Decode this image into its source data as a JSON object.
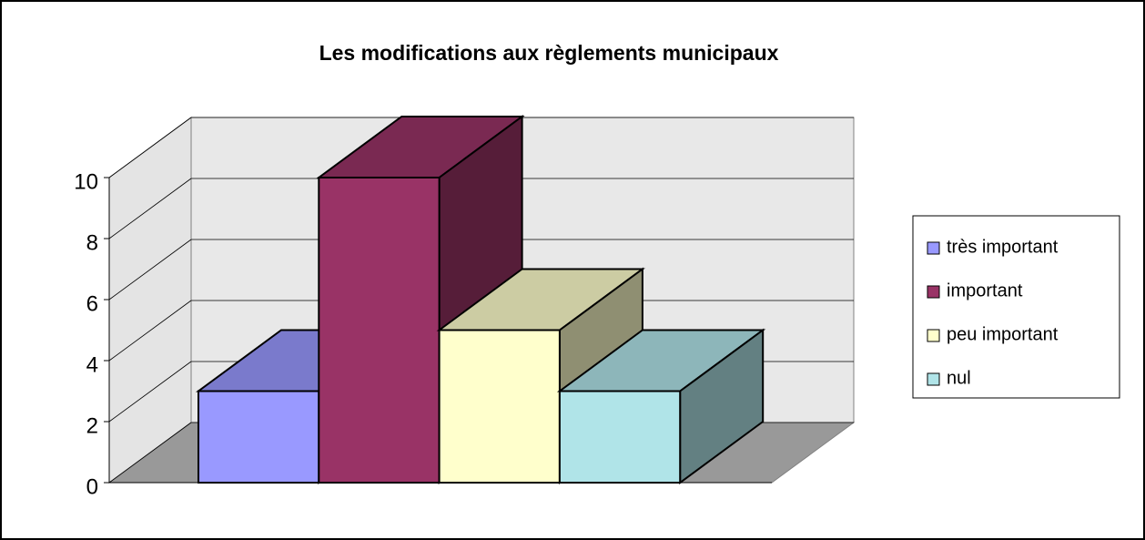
{
  "chart_data": {
    "type": "bar3d",
    "title": "Les modifications aux règlements municipaux",
    "series": [
      {
        "name": "très important",
        "color": "#9999ff",
        "values": [
          3
        ]
      },
      {
        "name": "important",
        "color": "#993366",
        "values": [
          10
        ]
      },
      {
        "name": "peu important",
        "color": "#ffffcc",
        "values": [
          5
        ]
      },
      {
        "name": "nul",
        "color": "#b0e4e8",
        "values": [
          3
        ]
      }
    ],
    "ylim": [
      0,
      10
    ],
    "yticks": [
      0,
      2,
      4,
      6,
      8,
      10
    ],
    "grid": true,
    "legend": "right"
  }
}
